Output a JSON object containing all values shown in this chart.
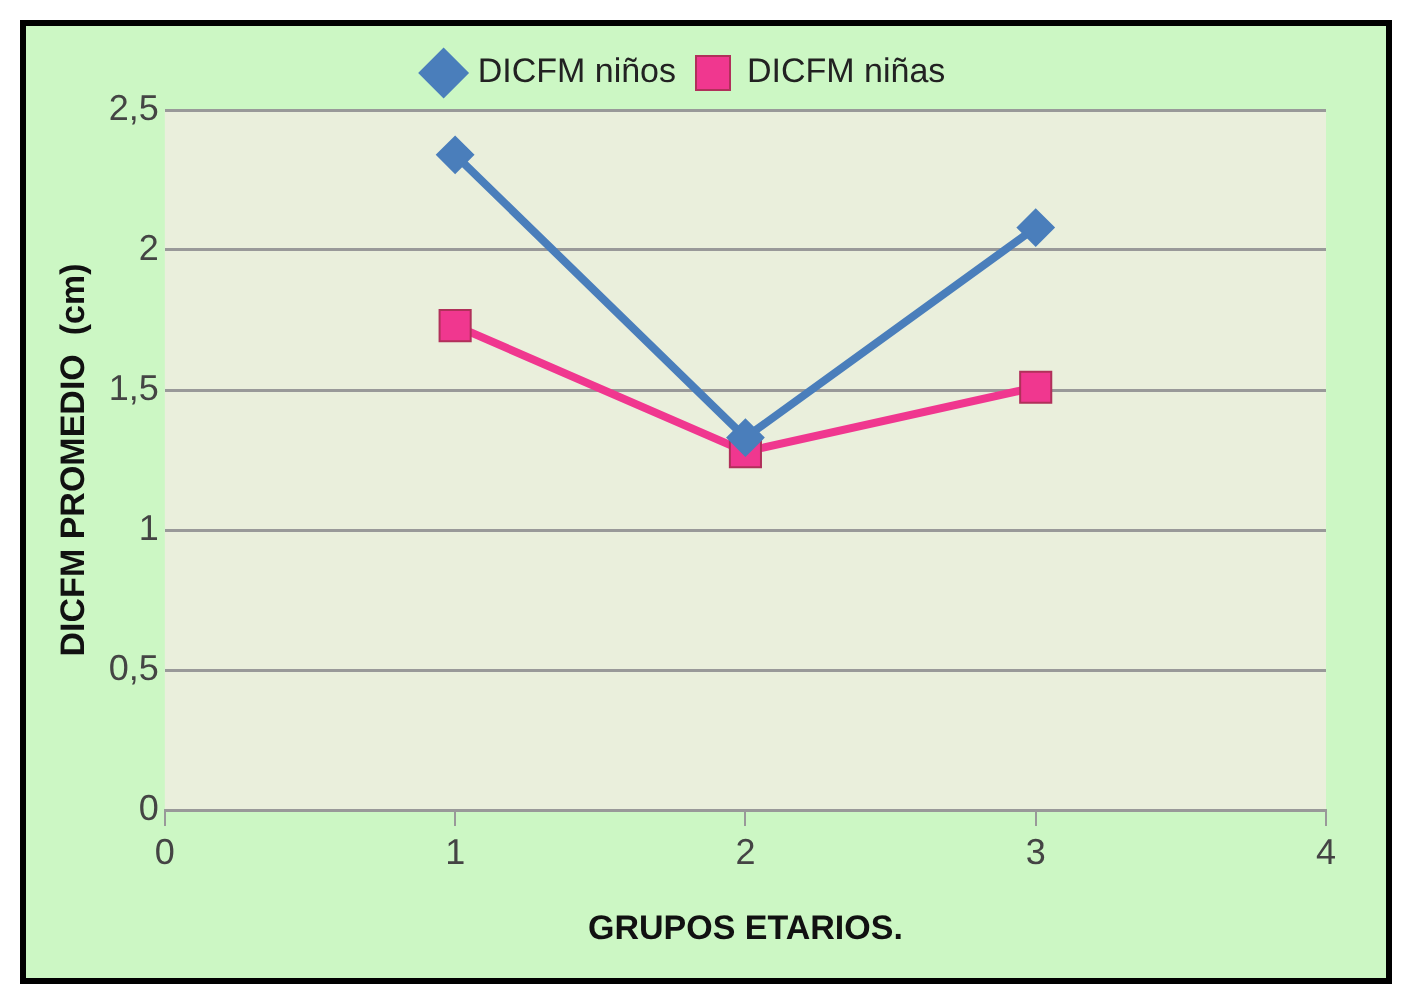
{
  "chart_data": {
    "type": "line",
    "xlabel": "GRUPOS ETARIOS.",
    "ylabel": "DICFM PROMEDIO  (cm)",
    "x": [
      1,
      2,
      3
    ],
    "series": [
      {
        "name": "DICFM niños",
        "color": "#4a7ebb",
        "values": [
          2.34,
          1.33,
          2.08
        ],
        "marker": "diamond"
      },
      {
        "name": "DICFM niñas",
        "color": "#f0378f",
        "values": [
          1.73,
          1.28,
          1.51
        ],
        "marker": "square"
      }
    ],
    "xlim": [
      0,
      4
    ],
    "xticks": [
      0,
      1,
      2,
      3,
      4
    ],
    "ylim": [
      0,
      2.5
    ],
    "yticks": [
      {
        "value": 0,
        "label": "0"
      },
      {
        "value": 0.5,
        "label": "0,5"
      },
      {
        "value": 1,
        "label": "1"
      },
      {
        "value": 1.5,
        "label": "1,5"
      },
      {
        "value": 2,
        "label": "2"
      },
      {
        "value": 2.5,
        "label": "2,5"
      }
    ],
    "grid": "y",
    "legend": "top"
  }
}
